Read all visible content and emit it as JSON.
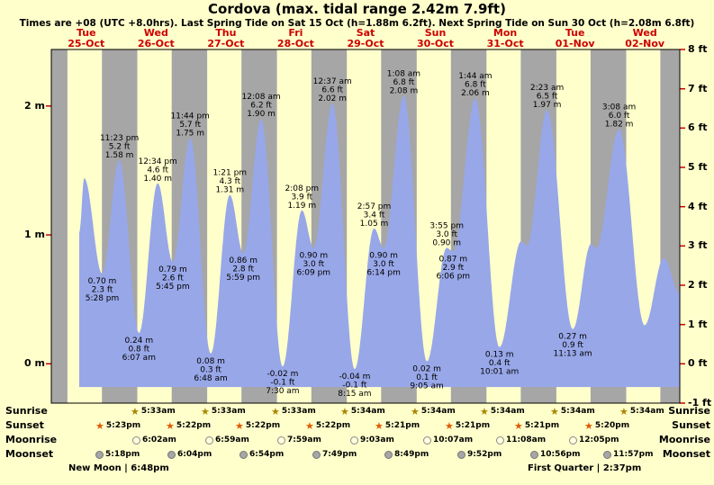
{
  "title": "Cordova (max. tidal range 2.42m 7.9ft)",
  "subtitle": "Times are +08 (UTC +8.0hrs). Last Spring Tide on Sat 15 Oct (h=1.88m 6.2ft). Next Spring Tide on Sun 30 Oct (h=2.08m 6.8ft)",
  "days": [
    {
      "weekday": "Tue",
      "date": "25-Oct"
    },
    {
      "weekday": "Wed",
      "date": "26-Oct"
    },
    {
      "weekday": "Thu",
      "date": "27-Oct"
    },
    {
      "weekday": "Fri",
      "date": "28-Oct"
    },
    {
      "weekday": "Sat",
      "date": "29-Oct"
    },
    {
      "weekday": "Sun",
      "date": "30-Oct"
    },
    {
      "weekday": "Mon",
      "date": "31-Oct"
    },
    {
      "weekday": "Tue",
      "date": "01-Nov"
    },
    {
      "weekday": "Wed",
      "date": "02-Nov"
    }
  ],
  "chart_data": {
    "type": "area",
    "title": "Cordova tide heights, 25 Oct - 02 Nov",
    "units": {
      "left_axis": "meters",
      "right_axis": "feet"
    },
    "hours_total": 216,
    "num_days": 9,
    "ylim_m": [
      -0.3048,
      2.4384
    ],
    "fill_baseline_m": -0.18,
    "colors": {
      "tide_fill": "#98a7e8",
      "night_band": "#a6a6a6",
      "day_band": "#ffffcc",
      "tick_red": "#cc0000",
      "border": "#000000",
      "day_label_red": "#cc0000"
    },
    "y_axis": {
      "left": [
        {
          "label": "2 m",
          "m": 2
        },
        {
          "label": "1 m",
          "m": 1
        },
        {
          "label": "0 m",
          "m": 0
        }
      ],
      "right": [
        {
          "label": "8 ft",
          "ft": 8
        },
        {
          "label": "7 ft",
          "ft": 7
        },
        {
          "label": "6 ft",
          "ft": 6
        },
        {
          "label": "5 ft",
          "ft": 5
        },
        {
          "label": "4 ft",
          "ft": 4
        },
        {
          "label": "3 ft",
          "ft": 3
        },
        {
          "label": "2 ft",
          "ft": 2
        },
        {
          "label": "1 ft",
          "ft": 1
        },
        {
          "label": "0 ft",
          "ft": 0
        },
        {
          "label": "-1 ft",
          "ft": -1
        }
      ]
    },
    "night_bands": [
      [
        0,
        5.55
      ],
      [
        17.38,
        29.55
      ],
      [
        41.37,
        53.55
      ],
      [
        65.37,
        77.55
      ],
      [
        89.37,
        101.57
      ],
      [
        113.35,
        125.57
      ],
      [
        137.35,
        149.57
      ],
      [
        161.35,
        173.57
      ],
      [
        185.33,
        197.57
      ],
      [
        209.33,
        216
      ]
    ],
    "extremes": [
      {
        "t": 9.6,
        "h": 1.02
      },
      {
        "t": 11.3,
        "h": 1.44
      },
      {
        "t": 17.47,
        "h": 0.7
      },
      {
        "t": 23.38,
        "h": 1.58
      },
      {
        "t": 30.12,
        "h": 0.24
      },
      {
        "t": 36.57,
        "h": 1.4
      },
      {
        "t": 41.75,
        "h": 0.79
      },
      {
        "t": 47.73,
        "h": 1.75
      },
      {
        "t": 54.8,
        "h": 0.08
      },
      {
        "t": 61.35,
        "h": 1.31
      },
      {
        "t": 65.98,
        "h": 0.86
      },
      {
        "t": 72.13,
        "h": 1.9
      },
      {
        "t": 79.5,
        "h": -0.02
      },
      {
        "t": 86.13,
        "h": 1.19
      },
      {
        "t": 90.15,
        "h": 0.9
      },
      {
        "t": 96.62,
        "h": 2.02
      },
      {
        "t": 104.25,
        "h": -0.04
      },
      {
        "t": 110.95,
        "h": 1.05
      },
      {
        "t": 114.23,
        "h": 0.9
      },
      {
        "t": 121.13,
        "h": 2.08
      },
      {
        "t": 129.08,
        "h": 0.02
      },
      {
        "t": 135.92,
        "h": 0.9
      },
      {
        "t": 138.1,
        "h": 0.87
      },
      {
        "t": 145.73,
        "h": 2.06
      },
      {
        "t": 154.02,
        "h": 0.13
      },
      {
        "t": 161.5,
        "h": 0.95
      },
      {
        "t": 163.5,
        "h": 0.92
      },
      {
        "t": 170.38,
        "h": 1.97
      },
      {
        "t": 179.22,
        "h": 0.27
      },
      {
        "t": 185.5,
        "h": 0.93
      },
      {
        "t": 187.3,
        "h": 0.9
      },
      {
        "t": 195.13,
        "h": 1.82
      },
      {
        "t": 203.9,
        "h": 0.3
      },
      {
        "t": 210.5,
        "h": 0.82
      },
      {
        "t": 216,
        "h": 0.55
      }
    ],
    "annotations": {
      "highs": [
        {
          "t": 23.38,
          "h": 1.58,
          "lines": [
            "11:23 pm",
            "5.2 ft",
            "1.58 m"
          ]
        },
        {
          "t": 36.57,
          "h": 1.4,
          "lines": [
            "12:34 pm",
            "4.6 ft",
            "1.40 m"
          ]
        },
        {
          "t": 47.73,
          "h": 1.75,
          "lines": [
            "11:44 pm",
            "5.7 ft",
            "1.75 m"
          ]
        },
        {
          "t": 61.35,
          "h": 1.31,
          "lines": [
            "1:21 pm",
            "4.3 ft",
            "1.31 m"
          ]
        },
        {
          "t": 72.13,
          "h": 1.9,
          "lines": [
            "12:08 am",
            "6.2 ft",
            "1.90 m"
          ]
        },
        {
          "t": 86.13,
          "h": 1.19,
          "lines": [
            "2:08 pm",
            "3.9 ft",
            "1.19 m"
          ]
        },
        {
          "t": 96.62,
          "h": 2.02,
          "lines": [
            "12:37 am",
            "6.6 ft",
            "2.02 m"
          ]
        },
        {
          "t": 110.95,
          "h": 1.05,
          "lines": [
            "2:57 pm",
            "3.4 ft",
            "1.05 m"
          ]
        },
        {
          "t": 121.13,
          "h": 2.08,
          "lines": [
            "1:08 am",
            "6.8 ft",
            "2.08 m"
          ]
        },
        {
          "t": 135.92,
          "h": 0.9,
          "lines": [
            "3:55 pm",
            "3.0 ft",
            "0.90 m"
          ]
        },
        {
          "t": 145.73,
          "h": 2.06,
          "lines": [
            "1:44 am",
            "6.8 ft",
            "2.06 m"
          ]
        },
        {
          "t": 170.38,
          "h": 1.97,
          "lines": [
            "2:23 am",
            "6.5 ft",
            "1.97 m"
          ]
        },
        {
          "t": 195.13,
          "h": 1.82,
          "lines": [
            "3:08 am",
            "6.0 ft",
            "1.82 m"
          ]
        }
      ],
      "lows": [
        {
          "t": 17.47,
          "h": 0.7,
          "lines": [
            "0.70 m",
            "2.3 ft",
            "5:28 pm"
          ]
        },
        {
          "t": 30.12,
          "h": 0.24,
          "lines": [
            "0.24 m",
            "0.8 ft",
            "6:07 am"
          ]
        },
        {
          "t": 41.75,
          "h": 0.79,
          "lines": [
            "0.79 m",
            "2.6 ft",
            "5:45 pm"
          ]
        },
        {
          "t": 54.8,
          "h": 0.08,
          "lines": [
            "0.08 m",
            "0.3 ft",
            "6:48 am"
          ]
        },
        {
          "t": 65.98,
          "h": 0.86,
          "lines": [
            "0.86 m",
            "2.8 ft",
            "5:59 pm"
          ]
        },
        {
          "t": 79.5,
          "h": -0.02,
          "lines": [
            "-0.02 m",
            "-0.1 ft",
            "7:30 am"
          ]
        },
        {
          "t": 90.15,
          "h": 0.9,
          "lines": [
            "0.90 m",
            "3.0 ft",
            "6:09 pm"
          ]
        },
        {
          "t": 104.25,
          "h": -0.04,
          "lines": [
            "-0.04 m",
            "-0.1 ft",
            "8:15 am"
          ]
        },
        {
          "t": 114.23,
          "h": 0.9,
          "lines": [
            "0.90 m",
            "3.0 ft",
            "6:14 pm"
          ]
        },
        {
          "t": 129.08,
          "h": 0.02,
          "lines": [
            "0.02 m",
            "0.1 ft",
            "9:05 am"
          ]
        },
        {
          "t": 138.1,
          "h": 0.87,
          "lines": [
            "0.87 m",
            "2.9 ft",
            "6:06 pm"
          ]
        },
        {
          "t": 154.02,
          "h": 0.13,
          "lines": [
            "0.13 m",
            "0.4 ft",
            "10:01 am"
          ]
        },
        {
          "t": 179.22,
          "h": 0.27,
          "lines": [
            "0.27 m",
            "0.9 ft",
            "11:13 am"
          ]
        }
      ]
    }
  },
  "astro": {
    "sunrise": {
      "label": "Sunrise",
      "entries": [
        {
          "day": 1,
          "time": "5:33am"
        },
        {
          "day": 2,
          "time": "5:33am"
        },
        {
          "day": 3,
          "time": "5:33am"
        },
        {
          "day": 4,
          "time": "5:34am"
        },
        {
          "day": 5,
          "time": "5:34am"
        },
        {
          "day": 6,
          "time": "5:34am"
        },
        {
          "day": 7,
          "time": "5:34am"
        },
        {
          "day": 8,
          "time": "5:34am"
        }
      ]
    },
    "sunset": {
      "label": "Sunset",
      "entries": [
        {
          "day": 0,
          "time": "5:23pm"
        },
        {
          "day": 1,
          "time": "5:22pm"
        },
        {
          "day": 2,
          "time": "5:22pm"
        },
        {
          "day": 3,
          "time": "5:22pm"
        },
        {
          "day": 4,
          "time": "5:21pm"
        },
        {
          "day": 5,
          "time": "5:21pm"
        },
        {
          "day": 6,
          "time": "5:21pm"
        },
        {
          "day": 7,
          "time": "5:20pm"
        }
      ]
    },
    "moonrise": {
      "label": "Moonrise",
      "entries": [
        {
          "day": 1,
          "time": "6:02am"
        },
        {
          "day": 2,
          "time": "6:59am"
        },
        {
          "day": 3,
          "time": "7:59am"
        },
        {
          "day": 4,
          "time": "9:03am"
        },
        {
          "day": 5,
          "time": "10:07am"
        },
        {
          "day": 6,
          "time": "11:08am"
        },
        {
          "day": 7,
          "time": "12:05pm"
        }
      ]
    },
    "moonset": {
      "label": "Moonset",
      "entries": [
        {
          "day": 0,
          "time": "5:18pm"
        },
        {
          "day": 1,
          "time": "6:04pm"
        },
        {
          "day": 2,
          "time": "6:54pm"
        },
        {
          "day": 3,
          "time": "7:49pm"
        },
        {
          "day": 4,
          "time": "8:49pm"
        },
        {
          "day": 5,
          "time": "9:52pm"
        },
        {
          "day": 6,
          "time": "10:56pm"
        },
        {
          "day": 7,
          "time": "11:57pm"
        }
      ]
    },
    "phases": {
      "left": "New Moon | 6:48pm",
      "right": "First Quarter | 2:37pm"
    }
  }
}
